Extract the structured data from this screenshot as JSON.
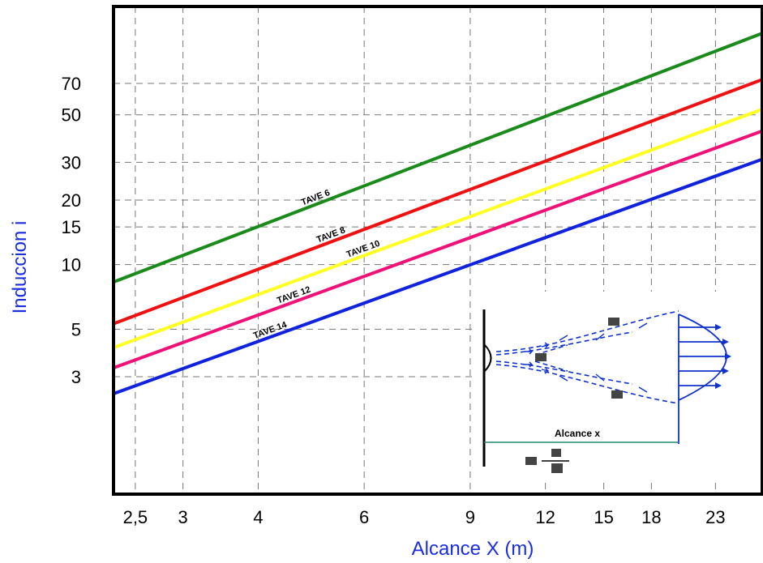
{
  "chart_data": {
    "type": "line",
    "xscale": "log",
    "yscale": "log",
    "xlabel": "Alcance X (m)",
    "ylabel": "Induccion   i",
    "x_ticks": [
      {
        "value": 2.5,
        "label": "2,5"
      },
      {
        "value": 3,
        "label": "3"
      },
      {
        "value": 4,
        "label": "4"
      },
      {
        "value": 6,
        "label": "6"
      },
      {
        "value": 9,
        "label": "9"
      },
      {
        "value": 12,
        "label": "12"
      },
      {
        "value": 15,
        "label": "15"
      },
      {
        "value": 18,
        "label": "18"
      },
      {
        "value": 23,
        "label": "23"
      }
    ],
    "y_ticks": [
      {
        "value": 3,
        "label": "3"
      },
      {
        "value": 5,
        "label": "5"
      },
      {
        "value": 10,
        "label": "10"
      },
      {
        "value": 15,
        "label": "15"
      },
      {
        "value": 20,
        "label": "20"
      },
      {
        "value": 30,
        "label": "30"
      },
      {
        "value": 50,
        "label": "50"
      },
      {
        "value": 70,
        "label": "70"
      }
    ],
    "grid": true,
    "xlim": [
      2.3,
      27.5
    ],
    "ylim": [
      0.85,
      160
    ],
    "series": [
      {
        "name": "TAVE 6",
        "color": "#1a8a1a",
        "x": [
          2.3,
          27.5
        ],
        "y": [
          8.3,
          120
        ]
      },
      {
        "name": "TAVE 8",
        "color": "#ee1111",
        "x": [
          2.3,
          27.5
        ],
        "y": [
          5.3,
          73
        ]
      },
      {
        "name": "TAVE 10",
        "color": "#ffff22",
        "x": [
          2.3,
          27.5
        ],
        "y": [
          4.1,
          53
        ]
      },
      {
        "name": "TAVE 12",
        "color": "#ee1177",
        "x": [
          2.3,
          27.5
        ],
        "y": [
          3.3,
          42
        ]
      },
      {
        "name": "TAVE 14",
        "color": "#1122dd",
        "x": [
          2.3,
          27.5
        ],
        "y": [
          2.5,
          31
        ]
      }
    ],
    "inset": {
      "caption": "Alcance x",
      "arrow_color": "#1133cc",
      "dimension_color": "#228877"
    }
  }
}
